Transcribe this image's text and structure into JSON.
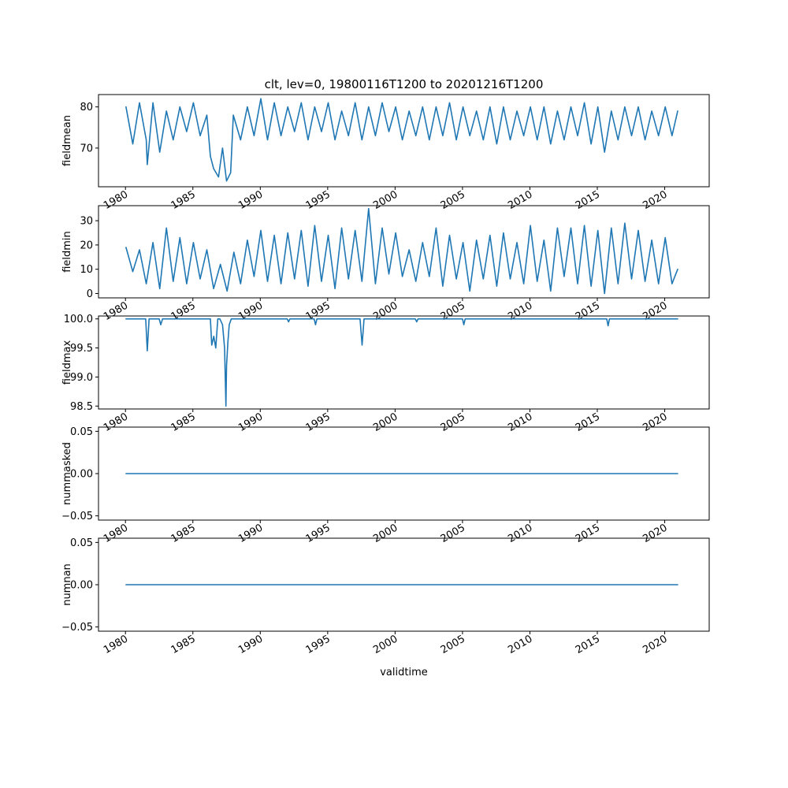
{
  "figure": {
    "title": "clt, lev=0, 19800116T1200 to 20201216T1200",
    "xlabel": "validtime"
  },
  "colors": {
    "series": "#1f77b4",
    "axes": "#000000",
    "background": "#ffffff"
  },
  "x_axis": {
    "range": [
      1978.0,
      2023.3
    ],
    "ticks": [
      1980,
      1985,
      1990,
      1995,
      2000,
      2005,
      2010,
      2015,
      2020
    ],
    "tick_labels": [
      "1980",
      "1985",
      "1990",
      "1995",
      "2000",
      "2005",
      "2010",
      "2015",
      "2020"
    ]
  },
  "chart_data": [
    {
      "type": "line",
      "ylabel": "fieldmean",
      "ylim": [
        60.6,
        83.0
      ],
      "yticks": [
        70,
        80
      ],
      "ytick_labels": [
        "70",
        "80"
      ],
      "x": [
        1980.04,
        1980.54,
        1981.04,
        1981.54,
        1981.62,
        1982.04,
        1982.54,
        1983.04,
        1983.54,
        1984.04,
        1984.54,
        1985.04,
        1985.54,
        1986.04,
        1986.3,
        1986.54,
        1986.9,
        1987.2,
        1987.5,
        1987.8,
        1988.0,
        1988.54,
        1989.04,
        1989.54,
        1990.04,
        1990.54,
        1991.04,
        1991.54,
        1992.04,
        1992.54,
        1993.04,
        1993.54,
        1994.04,
        1994.54,
        1995.04,
        1995.54,
        1996.04,
        1996.54,
        1997.04,
        1997.54,
        1998.04,
        1998.54,
        1999.04,
        1999.54,
        2000.04,
        2000.54,
        2001.04,
        2001.54,
        2002.04,
        2002.54,
        2003.04,
        2003.54,
        2004.04,
        2004.54,
        2005.04,
        2005.54,
        2006.04,
        2006.54,
        2007.04,
        2007.54,
        2008.04,
        2008.54,
        2009.04,
        2009.54,
        2010.04,
        2010.54,
        2011.04,
        2011.54,
        2012.04,
        2012.54,
        2013.04,
        2013.54,
        2014.04,
        2014.54,
        2015.04,
        2015.54,
        2016.04,
        2016.54,
        2017.04,
        2017.54,
        2018.04,
        2018.54,
        2019.04,
        2019.54,
        2020.04,
        2020.54,
        2020.96
      ],
      "values": [
        80,
        71,
        81,
        72,
        66,
        81,
        69,
        79,
        72,
        80,
        74,
        81,
        73,
        78,
        68,
        65,
        63,
        70,
        62,
        64,
        78,
        72,
        80,
        73,
        82,
        72,
        81,
        73,
        80,
        74,
        81,
        72,
        80,
        74,
        81,
        72,
        79,
        73,
        81,
        72,
        80,
        73,
        81,
        74,
        80,
        72,
        79,
        73,
        80,
        72,
        80,
        73,
        81,
        72,
        80,
        73,
        79,
        72,
        80,
        71,
        80,
        72,
        79,
        73,
        80,
        72,
        80,
        71,
        79,
        72,
        80,
        73,
        81,
        71,
        80,
        69,
        79,
        72,
        80,
        73,
        80,
        72,
        79,
        73,
        80,
        73,
        79
      ]
    },
    {
      "type": "line",
      "ylabel": "fieldmin",
      "ylim": [
        -1.8,
        36.2
      ],
      "yticks": [
        0,
        10,
        20,
        30
      ],
      "ytick_labels": [
        "0",
        "10",
        "20",
        "30"
      ],
      "x": [
        1980.04,
        1980.54,
        1981.04,
        1981.54,
        1982.04,
        1982.54,
        1983.04,
        1983.54,
        1984.04,
        1984.54,
        1985.04,
        1985.54,
        1986.04,
        1986.54,
        1987.04,
        1987.54,
        1988.04,
        1988.54,
        1989.04,
        1989.54,
        1990.04,
        1990.54,
        1991.04,
        1991.54,
        1992.04,
        1992.54,
        1993.04,
        1993.54,
        1994.04,
        1994.54,
        1995.04,
        1995.54,
        1996.04,
        1996.54,
        1997.04,
        1997.54,
        1998.04,
        1998.54,
        1999.04,
        1999.54,
        2000.04,
        2000.54,
        2001.04,
        2001.54,
        2002.04,
        2002.54,
        2003.04,
        2003.54,
        2004.04,
        2004.54,
        2005.04,
        2005.54,
        2006.04,
        2006.54,
        2007.04,
        2007.54,
        2008.04,
        2008.54,
        2009.04,
        2009.54,
        2010.04,
        2010.54,
        2011.04,
        2011.54,
        2012.04,
        2012.54,
        2013.04,
        2013.54,
        2014.04,
        2014.54,
        2015.04,
        2015.54,
        2016.04,
        2016.54,
        2017.04,
        2017.54,
        2018.04,
        2018.54,
        2019.04,
        2019.54,
        2020.04,
        2020.54,
        2020.96
      ],
      "values": [
        19,
        9,
        18,
        4,
        21,
        2,
        27,
        5,
        23,
        4,
        21,
        6,
        18,
        2,
        12,
        1,
        17,
        4,
        22,
        7,
        26,
        5,
        24,
        4,
        25,
        6,
        26,
        3,
        28,
        5,
        24,
        2,
        27,
        6,
        26,
        5,
        35,
        4,
        27,
        8,
        25,
        7,
        18,
        5,
        21,
        7,
        27,
        3,
        24,
        6,
        21,
        1,
        22,
        6,
        24,
        3,
        25,
        6,
        21,
        4,
        28,
        5,
        22,
        1,
        27,
        7,
        27,
        4,
        28,
        3,
        26,
        0,
        27,
        4,
        29,
        6,
        26,
        5,
        22,
        4,
        23,
        4,
        10
      ]
    },
    {
      "type": "line",
      "ylabel": "fieldmax",
      "ylim": [
        98.45,
        100.05
      ],
      "yticks": [
        98.5,
        99.0,
        99.5,
        100.0
      ],
      "ytick_labels": [
        "98.5",
        "99.0",
        "99.5",
        "100.0"
      ],
      "x": [
        1980.04,
        1981.0,
        1981.5,
        1981.62,
        1981.75,
        1982.5,
        1982.62,
        1982.75,
        1986.3,
        1986.4,
        1986.55,
        1986.7,
        1986.85,
        1987.0,
        1987.2,
        1987.35,
        1987.45,
        1987.5,
        1987.6,
        1987.7,
        1987.85,
        1988.0,
        1992.0,
        1992.1,
        1992.2,
        1994.0,
        1994.1,
        1994.2,
        1997.4,
        1997.55,
        1997.7,
        2001.5,
        2001.6,
        2001.7,
        2005.0,
        2005.1,
        2005.2,
        2015.7,
        2015.8,
        2015.9,
        2020.96
      ],
      "values": [
        100,
        100,
        100,
        99.45,
        100,
        100,
        99.9,
        100,
        100,
        99.55,
        99.7,
        99.5,
        100,
        100,
        99.9,
        99.5,
        98.5,
        99.2,
        99.6,
        99.9,
        100,
        100,
        100,
        99.95,
        100,
        100,
        99.9,
        100,
        100,
        99.55,
        100,
        100,
        99.95,
        100,
        100,
        99.9,
        100,
        100,
        99.88,
        100,
        100
      ]
    },
    {
      "type": "line",
      "ylabel": "nummasked",
      "ylim": [
        -0.055,
        0.055
      ],
      "yticks": [
        -0.05,
        0.0,
        0.05
      ],
      "ytick_labels": [
        "−0.05",
        "0.00",
        "0.05"
      ],
      "x": [
        1980.04,
        2020.96
      ],
      "values": [
        0,
        0
      ]
    },
    {
      "type": "line",
      "ylabel": "numnan",
      "ylim": [
        -0.055,
        0.055
      ],
      "yticks": [
        -0.05,
        0.0,
        0.05
      ],
      "ytick_labels": [
        "−0.05",
        "0.00",
        "0.05"
      ],
      "x": [
        1980.04,
        2020.96
      ],
      "values": [
        0,
        0
      ]
    }
  ]
}
